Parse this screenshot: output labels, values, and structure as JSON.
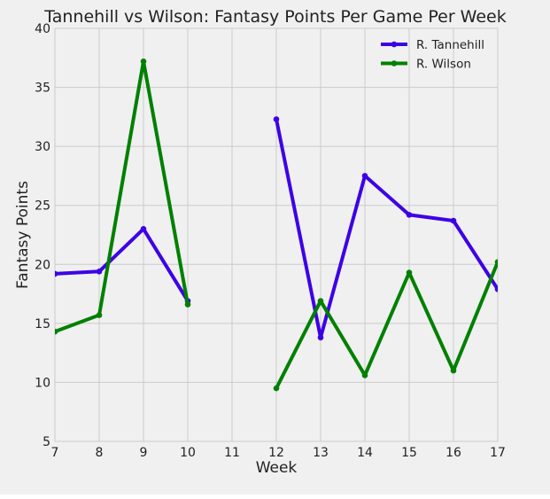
{
  "chart_data": {
    "type": "line",
    "title": "Tannehill vs Wilson: Fantasy Points Per Game Per Week",
    "xlabel": "Week",
    "ylabel": "Fantasy Points",
    "xlim": [
      7,
      17
    ],
    "ylim": [
      5,
      40
    ],
    "xticks": [
      "7",
      "8",
      "9",
      "10",
      "11",
      "12",
      "13",
      "14",
      "15",
      "16",
      "17"
    ],
    "yticks": [
      "5",
      "10",
      "15",
      "20",
      "25",
      "30",
      "35",
      "40"
    ],
    "grid": true,
    "legend_position": "top-right",
    "x": [
      7,
      8,
      9,
      10,
      11,
      12,
      13,
      14,
      15,
      16,
      17
    ],
    "series": [
      {
        "name": "R. Tannehill",
        "color": "#3d00e6",
        "values": [
          19.2,
          19.4,
          23.0,
          16.9,
          null,
          32.3,
          13.8,
          27.5,
          24.2,
          23.7,
          17.9
        ]
      },
      {
        "name": "R. Wilson",
        "color": "#008000",
        "values": [
          14.3,
          15.7,
          37.2,
          16.6,
          null,
          9.5,
          16.9,
          10.6,
          19.3,
          11.0,
          20.2
        ]
      }
    ]
  }
}
